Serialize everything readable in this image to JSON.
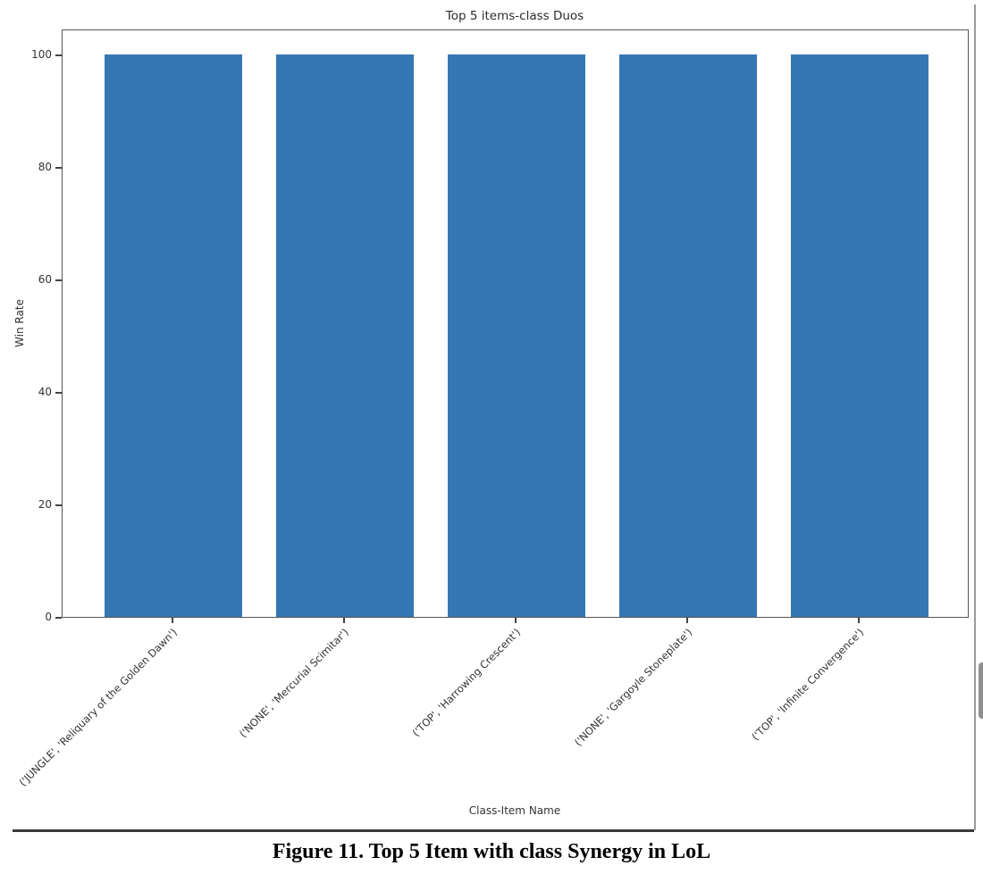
{
  "chart_data": {
    "type": "bar",
    "title": "Top 5 items-class Duos",
    "xlabel": "Class-Item Name",
    "ylabel": "Win Rate",
    "categories": [
      "('JUNGLE', 'Reliquary of the Golden Dawn')",
      "('NONE', 'Mercurial Scimitar')",
      "('TOP', 'Harrowing Crescent')",
      "('NONE', 'Gargoyle Stoneplate')",
      "('TOP', 'Infinite Convergence')"
    ],
    "values": [
      100,
      100,
      100,
      100,
      100
    ],
    "yticks": [
      0,
      20,
      40,
      60,
      80,
      100
    ],
    "ylim": [
      0,
      104.6
    ],
    "bar_color": "#3577b4",
    "grid": false,
    "legend": null
  },
  "caption": "Figure 11. Top 5 Item with class Synergy in LoL"
}
